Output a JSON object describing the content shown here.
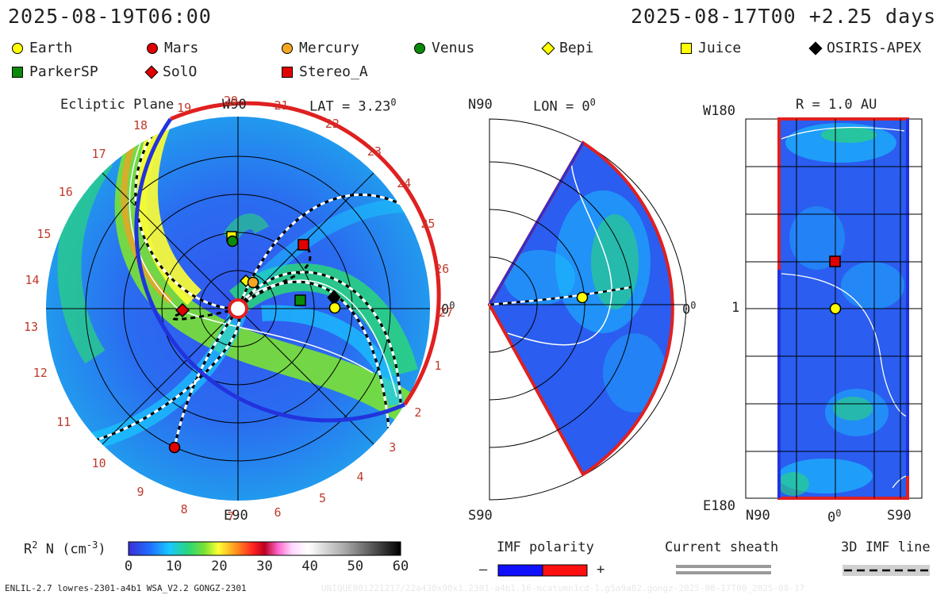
{
  "header": {
    "left_time": "2025-08-19T06:00",
    "right_time": "2025-08-17T00 +2.25 days"
  },
  "legend": [
    {
      "label": "Earth",
      "shape": "circle",
      "color": "#ffff00"
    },
    {
      "label": "Mars",
      "shape": "circle",
      "color": "#e00000"
    },
    {
      "label": "Mercury",
      "shape": "circle",
      "color": "#f5a623"
    },
    {
      "label": "Venus",
      "shape": "circle",
      "color": "#0a8a0a"
    },
    {
      "label": "Bepi",
      "shape": "diamond",
      "color": "#ffff00"
    },
    {
      "label": "Juice",
      "shape": "square",
      "color": "#ffff00"
    },
    {
      "label": "OSIRIS-APEX",
      "shape": "diamond",
      "color": "#000000"
    },
    {
      "label": "ParkerSP",
      "shape": "square",
      "color": "#0a8a0a"
    },
    {
      "label": "SolO",
      "shape": "diamond",
      "color": "#e00000"
    },
    {
      "label": "Stereo_A",
      "shape": "square",
      "color": "#e00000"
    }
  ],
  "panels": {
    "ecliptic": {
      "title": "Ecliptic Plane",
      "lat": "LAT = 3.23",
      "top_label": "W90",
      "bottom_label": "E90",
      "right_label": "0",
      "degree_mark": "0",
      "rim_numbers": [
        "1",
        "2",
        "3",
        "4",
        "5",
        "6",
        "7",
        "8",
        "9",
        "10",
        "11",
        "12",
        "13",
        "14",
        "15",
        "16",
        "17",
        "18",
        "19",
        "20",
        "21",
        "22",
        "23",
        "24",
        "25",
        "26",
        "27"
      ]
    },
    "meridional": {
      "lon": "LON = 0",
      "degree_mark": "0",
      "top_label": "N90",
      "bottom_label": "S90",
      "right_label": "0"
    },
    "radial": {
      "title": "R = 1.0 AU",
      "degree_mark": "0",
      "top_left": "W180",
      "bottom_left": "E180",
      "mid_left": "1",
      "bottom_labels": [
        "N90",
        "0",
        "S90"
      ]
    }
  },
  "colorbar": {
    "label": "R",
    "label_sup": "2",
    "label_rest": " N (cm",
    "label_sup2": "-3",
    "label_end": ")",
    "ticks": [
      "0",
      "10",
      "20",
      "30",
      "40",
      "50",
      "60"
    ],
    "range": [
      0,
      60
    ]
  },
  "imf": {
    "title": "IMF polarity",
    "minus": "–",
    "plus": "+",
    "neg_color": "#1010ff",
    "pos_color": "#ff1010"
  },
  "current_sheath": {
    "title": "Current sheath"
  },
  "imf_line": {
    "title": "3D IMF line"
  },
  "footer": {
    "model": "ENLIL-2.7 lowres-2301-a4b1 WSA_V2.2 GONGZ-2301",
    "run_id": "UNIQUE081221217/22a430x90x1.2301-a4b1.16-mcatumn1cd-1.g5a9a82.gongz-2025-08-17T00_2025-08-17"
  }
}
